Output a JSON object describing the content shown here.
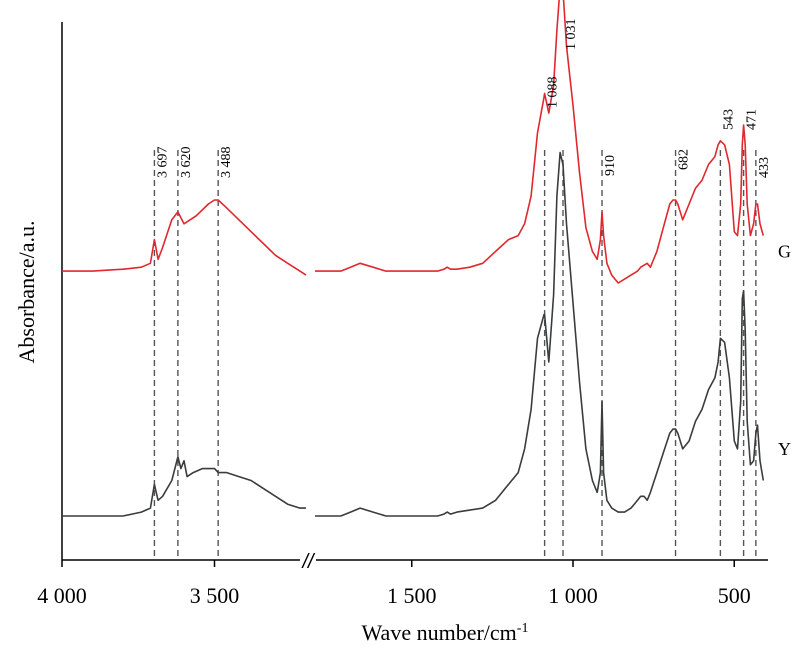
{
  "chart_data": {
    "type": "line",
    "title": "",
    "xlabel": "Wave number/cm",
    "xlabel_sup": "-1",
    "ylabel": "Absorbance/a.u.",
    "x_ticks": [
      {
        "value": 4000,
        "label": "4 000"
      },
      {
        "value": 3500,
        "label": "3 500"
      },
      {
        "value": 1500,
        "label": "1 500"
      },
      {
        "value": 1000,
        "label": "1 000"
      },
      {
        "value": 500,
        "label": "500"
      }
    ],
    "axis_break": "//",
    "x_segments": [
      [
        4000,
        3200
      ],
      [
        1800,
        400
      ]
    ],
    "grid": false,
    "series": [
      {
        "name": "G",
        "color": "#e0282e",
        "x": [
          4000,
          3900,
          3800,
          3740,
          3710,
          3697,
          3685,
          3670,
          3640,
          3620,
          3600,
          3560,
          3520,
          3500,
          3488,
          3460,
          3420,
          3380,
          3340,
          3300,
          3260,
          3220,
          3200,
          1800,
          1760,
          1720,
          1690,
          1660,
          1620,
          1580,
          1540,
          1500,
          1460,
          1420,
          1400,
          1390,
          1380,
          1360,
          1320,
          1280,
          1240,
          1200,
          1170,
          1150,
          1130,
          1110,
          1090,
          1088,
          1075,
          1060,
          1050,
          1040,
          1031,
          1020,
          1000,
          980,
          960,
          940,
          925,
          915,
          910,
          905,
          895,
          880,
          860,
          840,
          820,
          800,
          790,
          780,
          770,
          760,
          740,
          720,
          700,
          690,
          682,
          675,
          660,
          640,
          620,
          600,
          580,
          560,
          550,
          543,
          530,
          515,
          500,
          490,
          480,
          475,
          471,
          466,
          460,
          450,
          440,
          433,
          428,
          420,
          410
        ],
        "y": [
          0.13,
          0.13,
          0.135,
          0.14,
          0.15,
          0.21,
          0.16,
          0.19,
          0.26,
          0.28,
          0.25,
          0.27,
          0.3,
          0.31,
          0.31,
          0.29,
          0.26,
          0.23,
          0.2,
          0.17,
          0.15,
          0.13,
          0.12,
          0.13,
          0.13,
          0.13,
          0.14,
          0.15,
          0.14,
          0.13,
          0.13,
          0.13,
          0.13,
          0.13,
          0.135,
          0.14,
          0.135,
          0.135,
          0.14,
          0.15,
          0.18,
          0.21,
          0.22,
          0.25,
          0.32,
          0.48,
          0.57,
          0.58,
          0.53,
          0.6,
          0.74,
          0.85,
          0.84,
          0.7,
          0.55,
          0.38,
          0.24,
          0.18,
          0.16,
          0.21,
          0.28,
          0.22,
          0.15,
          0.12,
          0.1,
          0.11,
          0.12,
          0.13,
          0.14,
          0.145,
          0.15,
          0.14,
          0.18,
          0.24,
          0.3,
          0.31,
          0.31,
          0.3,
          0.26,
          0.3,
          0.34,
          0.36,
          0.4,
          0.42,
          0.45,
          0.46,
          0.45,
          0.4,
          0.23,
          0.22,
          0.3,
          0.45,
          0.5,
          0.45,
          0.3,
          0.22,
          0.25,
          0.3,
          0.3,
          0.25,
          0.22
        ],
        "offset": 0.5
      },
      {
        "name": "Y",
        "color": "#3a3d3d",
        "x": [
          4000,
          3900,
          3800,
          3740,
          3710,
          3697,
          3685,
          3670,
          3640,
          3620,
          3610,
          3600,
          3590,
          3570,
          3540,
          3500,
          3488,
          3460,
          3420,
          3380,
          3340,
          3300,
          3260,
          3220,
          3200,
          1800,
          1760,
          1720,
          1690,
          1660,
          1620,
          1580,
          1540,
          1500,
          1460,
          1420,
          1400,
          1390,
          1380,
          1360,
          1320,
          1280,
          1240,
          1200,
          1170,
          1150,
          1130,
          1110,
          1090,
          1088,
          1075,
          1060,
          1050,
          1040,
          1031,
          1020,
          1000,
          980,
          960,
          940,
          925,
          915,
          910,
          905,
          895,
          880,
          860,
          840,
          820,
          800,
          790,
          780,
          770,
          760,
          740,
          720,
          700,
          690,
          682,
          675,
          660,
          640,
          620,
          600,
          580,
          560,
          550,
          543,
          530,
          515,
          500,
          490,
          480,
          475,
          471,
          466,
          460,
          450,
          440,
          433,
          428,
          420,
          410
        ],
        "y": [
          0.01,
          0.01,
          0.01,
          0.02,
          0.03,
          0.09,
          0.05,
          0.06,
          0.1,
          0.16,
          0.13,
          0.15,
          0.11,
          0.12,
          0.13,
          0.13,
          0.12,
          0.12,
          0.11,
          0.1,
          0.08,
          0.06,
          0.04,
          0.03,
          0.03,
          0.01,
          0.01,
          0.01,
          0.02,
          0.03,
          0.02,
          0.01,
          0.01,
          0.01,
          0.01,
          0.01,
          0.015,
          0.02,
          0.015,
          0.02,
          0.025,
          0.03,
          0.05,
          0.09,
          0.12,
          0.18,
          0.28,
          0.46,
          0.52,
          0.52,
          0.4,
          0.57,
          0.82,
          0.93,
          0.9,
          0.75,
          0.55,
          0.35,
          0.18,
          0.1,
          0.07,
          0.12,
          0.3,
          0.12,
          0.05,
          0.03,
          0.02,
          0.02,
          0.03,
          0.05,
          0.06,
          0.06,
          0.05,
          0.07,
          0.12,
          0.17,
          0.22,
          0.23,
          0.23,
          0.22,
          0.18,
          0.2,
          0.25,
          0.28,
          0.33,
          0.36,
          0.4,
          0.46,
          0.45,
          0.36,
          0.2,
          0.18,
          0.3,
          0.56,
          0.58,
          0.48,
          0.25,
          0.14,
          0.15,
          0.22,
          0.24,
          0.15,
          0.1
        ],
        "offset": 0.0
      }
    ],
    "peaks": [
      {
        "x": 3697,
        "label": "3 697"
      },
      {
        "x": 3620,
        "label": "3 620"
      },
      {
        "x": 3488,
        "label": "3 488"
      },
      {
        "x": 1088,
        "label": "1 088"
      },
      {
        "x": 1031,
        "label": "1 031"
      },
      {
        "x": 910,
        "label": "910"
      },
      {
        "x": 682,
        "label": "682"
      },
      {
        "x": 543,
        "label": "543"
      },
      {
        "x": 471,
        "label": "471"
      },
      {
        "x": 433,
        "label": "433"
      }
    ],
    "series_labels": [
      {
        "series": "G",
        "text": "G"
      },
      {
        "series": "Y",
        "text": "Y"
      }
    ]
  }
}
